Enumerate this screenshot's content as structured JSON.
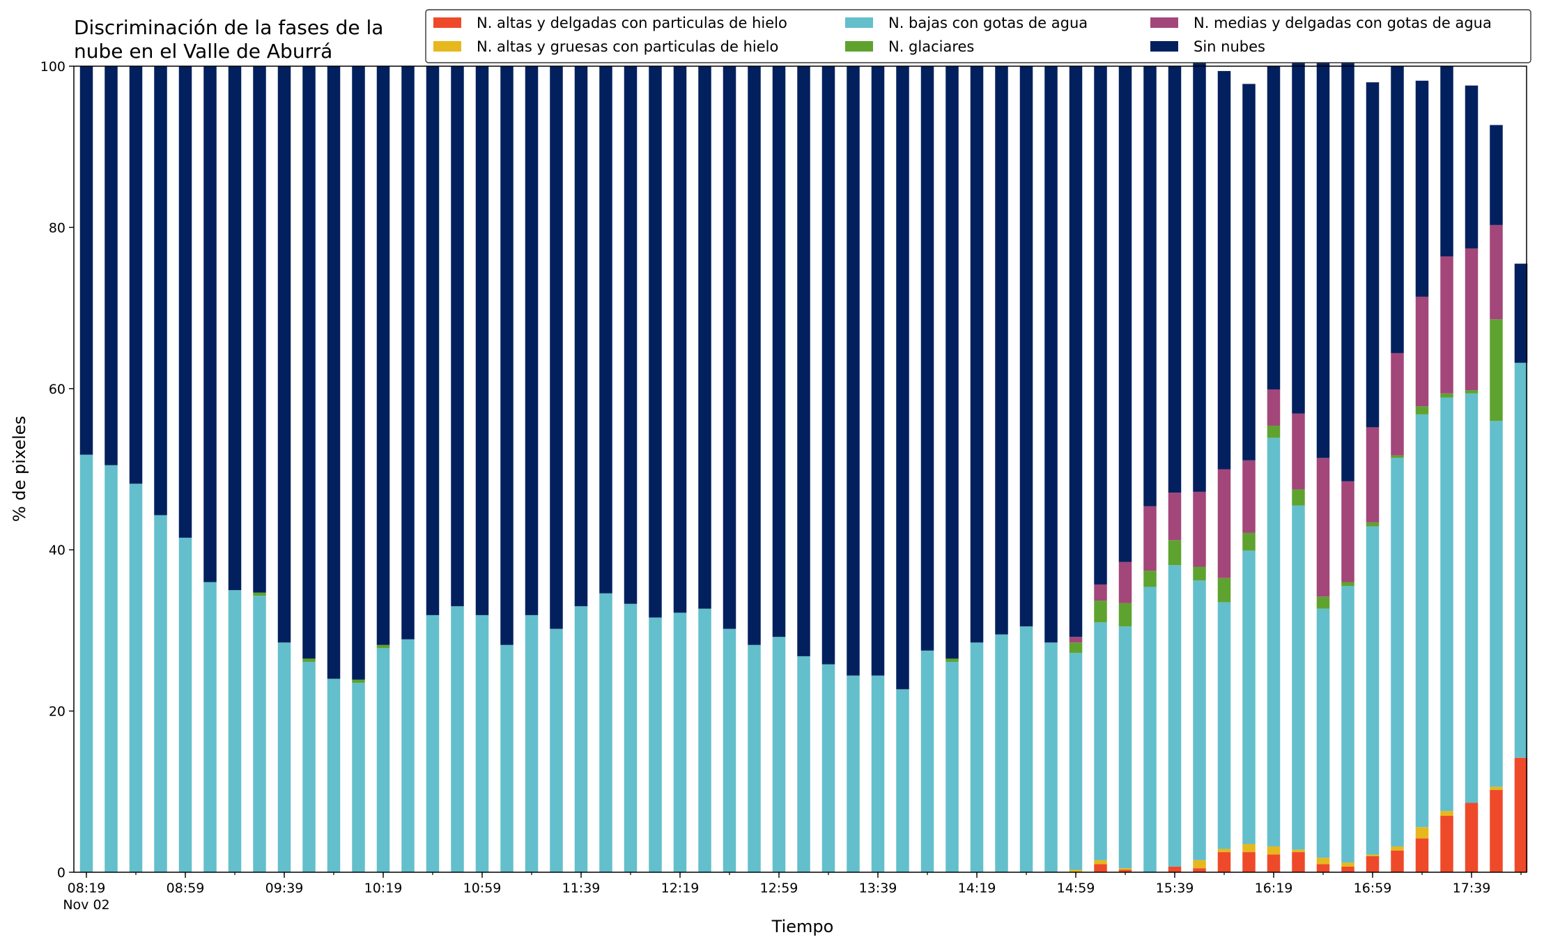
{
  "chart_data": {
    "type": "bar",
    "stacked": true,
    "title_lines": [
      "Discriminación de la fases de la",
      "nube en el Valle de Aburrá"
    ],
    "xlabel": "Tiempo",
    "ylabel": "% de pixeles",
    "ylim": [
      0,
      100
    ],
    "yticks": [
      0,
      20,
      40,
      60,
      80,
      100
    ],
    "grid": false,
    "legend_position": "top-right",
    "x_tick_labels": [
      {
        "index": 0,
        "label": "08:19",
        "sublabel": "Nov 02"
      },
      {
        "index": 4,
        "label": "08:59"
      },
      {
        "index": 8,
        "label": "09:39"
      },
      {
        "index": 12,
        "label": "10:19"
      },
      {
        "index": 16,
        "label": "10:59"
      },
      {
        "index": 20,
        "label": "11:39"
      },
      {
        "index": 24,
        "label": "12:19"
      },
      {
        "index": 28,
        "label": "12:59"
      },
      {
        "index": 32,
        "label": "13:39"
      },
      {
        "index": 36,
        "label": "14:19"
      },
      {
        "index": 40,
        "label": "14:59"
      },
      {
        "index": 44,
        "label": "15:39"
      },
      {
        "index": 48,
        "label": "16:19"
      },
      {
        "index": 52,
        "label": "16:59"
      },
      {
        "index": 56,
        "label": "17:39"
      }
    ],
    "series": [
      {
        "name": "N. altas y delgadas con particulas de hielo",
        "color": "#ee4a2a",
        "values": [
          0,
          0,
          0,
          0,
          0,
          0,
          0,
          0,
          0,
          0,
          0,
          0,
          0,
          0,
          0,
          0,
          0,
          0,
          0,
          0,
          0,
          0,
          0,
          0,
          0,
          0,
          0,
          0,
          0,
          0,
          0,
          0,
          0,
          0,
          0,
          0,
          0,
          0,
          0,
          0,
          0,
          1.0,
          0.3,
          0,
          0.7,
          0.5,
          2.5,
          2.5,
          2.2,
          2.5,
          1.0,
          0.7,
          2.0,
          2.7,
          4.2,
          7.0,
          8.6,
          10.2,
          14.2
        ]
      },
      {
        "name": "N. altas y gruesas con particulas de hielo",
        "color": "#e6b81e",
        "values": [
          0,
          0,
          0,
          0,
          0,
          0,
          0,
          0,
          0,
          0,
          0,
          0,
          0,
          0,
          0,
          0,
          0,
          0,
          0,
          0,
          0,
          0,
          0,
          0,
          0,
          0,
          0,
          0,
          0,
          0,
          0,
          0,
          0,
          0,
          0,
          0,
          0,
          0,
          0,
          0,
          0.3,
          0.5,
          0.2,
          0,
          0,
          1.0,
          0.4,
          1.0,
          1.0,
          0.3,
          0.8,
          0.5,
          0.2,
          0.5,
          1.4,
          0.6,
          0,
          0.4,
          0
        ]
      },
      {
        "name": "N. bajas con gotas de agua",
        "color": "#63bfcb",
        "values": [
          51.8,
          50.5,
          48.2,
          44.3,
          41.5,
          36.0,
          35.0,
          34.3,
          28.5,
          26.1,
          24.0,
          23.5,
          27.8,
          28.9,
          31.9,
          33.0,
          31.9,
          28.2,
          31.9,
          30.2,
          33.0,
          34.6,
          33.3,
          31.6,
          32.2,
          32.7,
          30.2,
          28.2,
          29.2,
          26.8,
          25.8,
          24.4,
          24.4,
          22.7,
          27.5,
          26.1,
          28.5,
          29.5,
          30.5,
          28.5,
          26.9,
          29.5,
          30.0,
          35.4,
          37.4,
          34.7,
          30.6,
          36.4,
          50.7,
          42.7,
          30.9,
          34.3,
          40.7,
          48.2,
          51.2,
          51.3,
          50.8,
          45.4,
          49.0
        ]
      },
      {
        "name": "N. glaciares",
        "color": "#5ea32f",
        "values": [
          0,
          0,
          0,
          0,
          0,
          0,
          0,
          0.4,
          0,
          0.4,
          0,
          0.4,
          0.4,
          0,
          0,
          0,
          0,
          0,
          0,
          0,
          0,
          0,
          0,
          0,
          0,
          0,
          0,
          0,
          0,
          0,
          0,
          0,
          0,
          0,
          0,
          0.4,
          0,
          0,
          0,
          0,
          1.3,
          2.7,
          2.9,
          2.0,
          3.1,
          1.7,
          3.0,
          2.2,
          1.5,
          2.0,
          1.5,
          0.5,
          0.5,
          0.3,
          1.0,
          0.5,
          0.4,
          12.6,
          0
        ]
      },
      {
        "name": "N. medias y delgadas con gotas de agua",
        "color": "#a3467a",
        "values": [
          0,
          0,
          0,
          0,
          0,
          0,
          0,
          0,
          0,
          0,
          0,
          0,
          0,
          0,
          0,
          0,
          0,
          0,
          0,
          0,
          0,
          0,
          0,
          0,
          0,
          0,
          0,
          0,
          0,
          0,
          0,
          0,
          0,
          0,
          0,
          0,
          0,
          0,
          0,
          0,
          0.7,
          2.0,
          5.1,
          8.0,
          5.9,
          9.3,
          13.5,
          9.0,
          4.5,
          9.4,
          17.2,
          12.5,
          11.8,
          12.7,
          13.6,
          17.0,
          17.6,
          11.7,
          0
        ]
      },
      {
        "name": "Sin nubes",
        "color": "#03205e",
        "values": [
          48.2,
          49.5,
          51.8,
          55.7,
          58.5,
          64.0,
          65.0,
          65.3,
          71.5,
          73.5,
          76.0,
          76.1,
          71.8,
          71.1,
          68.1,
          67.0,
          68.1,
          71.8,
          68.1,
          69.8,
          67.0,
          65.4,
          66.7,
          68.4,
          67.8,
          67.3,
          69.8,
          71.8,
          70.8,
          73.2,
          74.2,
          75.6,
          75.6,
          77.3,
          72.5,
          73.5,
          71.5,
          70.5,
          69.5,
          71.5,
          70.8,
          64.3,
          61.5,
          54.6,
          52.9,
          53.3,
          49.4,
          46.7,
          40.1,
          44.6,
          49.5,
          52.2,
          42.8,
          35.6,
          26.8,
          23.6,
          20.2,
          12.4,
          12.3
        ]
      }
    ]
  }
}
